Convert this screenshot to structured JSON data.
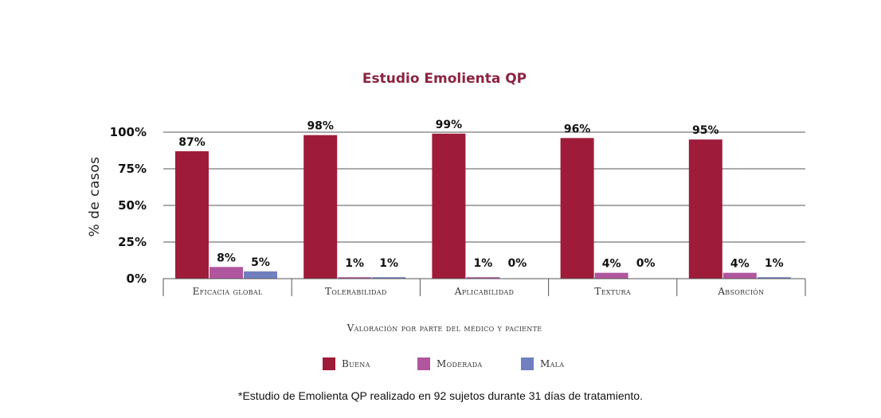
{
  "chart_data": {
    "type": "bar",
    "title": "Estudio Emolienta QP",
    "ylabel": "% de casos",
    "xlabel": "Valoración por parte del médico y paciente",
    "ylim": [
      0,
      100
    ],
    "yticks": [
      0,
      25,
      50,
      75,
      100
    ],
    "ytick_labels": [
      "0%",
      "25%",
      "50%",
      "75%",
      "100%"
    ],
    "grid": true,
    "legend_position": "bottom",
    "categories": [
      "Eficacia global",
      "Tolerabilidad",
      "Aplicabilidad",
      "Textura",
      "Absorción"
    ],
    "series": [
      {
        "name": "Buena",
        "color": "#9e1b3a",
        "values": [
          87,
          98,
          99,
          96,
          95
        ],
        "labels": [
          "87%",
          "98%",
          "99%",
          "96%",
          "95%"
        ]
      },
      {
        "name": "Moderada",
        "color": "#b0569e",
        "values": [
          8,
          1,
          1,
          4,
          4
        ],
        "labels": [
          "8%",
          "1%",
          "1%",
          "4%",
          "4%"
        ]
      },
      {
        "name": "Mala",
        "color": "#7080bf",
        "values": [
          5,
          1,
          0,
          0,
          1
        ],
        "labels": [
          "5%",
          "1%",
          "0%",
          "0%",
          "1%"
        ]
      }
    ]
  },
  "footnote": "*Estudio de Emolienta QP realizado en 92 sujetos durante 31 días de tratamiento."
}
